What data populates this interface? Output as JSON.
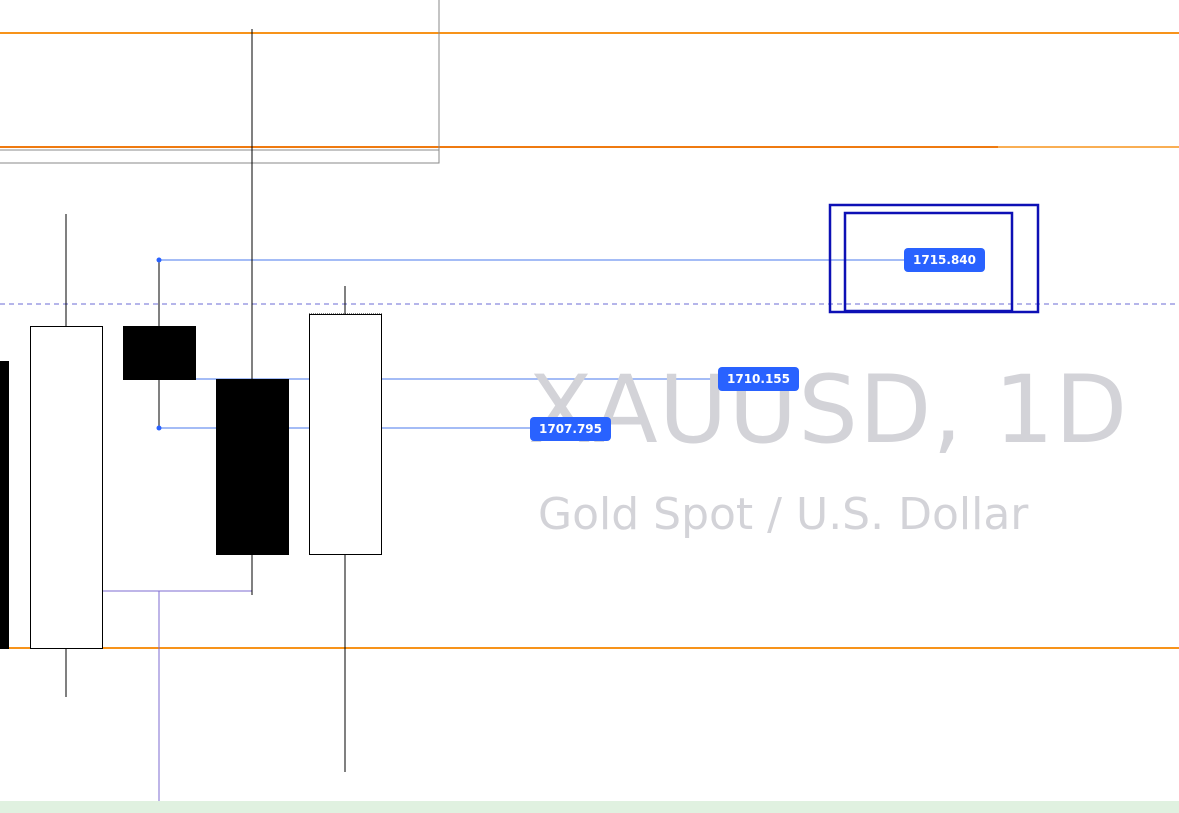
{
  "chart_data": {
    "type": "candlestick",
    "symbol": "XAUUSD, 1D",
    "description": "Gold Spot / U.S. Dollar",
    "price_labels": [
      "1715.840",
      "1710.155",
      "1707.795"
    ],
    "price_levels": {
      "badge_a": 1715.84,
      "badge_b": 1710.155,
      "badge_c": 1707.795
    },
    "colors": {
      "level_line": "#f7931a",
      "drawing_line": "#2962ff",
      "badge_bg": "#2962ff",
      "rect_border": "#0d10b5",
      "watermark": "#d3d3d8",
      "bear_candle": "#000000",
      "bull_candle": "#ffffff"
    }
  }
}
